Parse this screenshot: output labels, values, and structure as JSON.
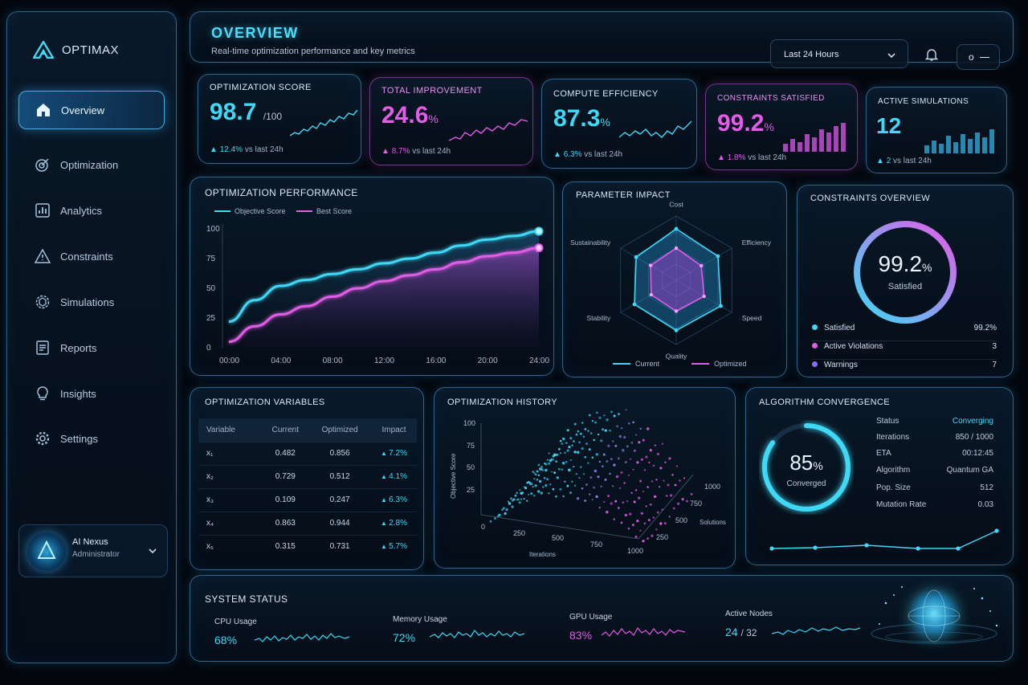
{
  "app": {
    "name": "OPTIMAX"
  },
  "sidebar": {
    "items": [
      {
        "label": "Overview",
        "icon": "home-icon"
      },
      {
        "label": "Optimization",
        "icon": "target-icon"
      },
      {
        "label": "Analytics",
        "icon": "bar-chart-icon"
      },
      {
        "label": "Constraints",
        "icon": "triangle-warning-icon"
      },
      {
        "label": "Simulations",
        "icon": "cube-gear-icon"
      },
      {
        "label": "Reports",
        "icon": "document-icon"
      },
      {
        "label": "Insights",
        "icon": "lightbulb-icon"
      },
      {
        "label": "Settings",
        "icon": "gear-icon"
      }
    ],
    "user": {
      "name": "AI Nexus",
      "role": "Administrator"
    }
  },
  "header": {
    "title": "OVERVIEW",
    "subtitle": "Real-time optimization performance and key metrics",
    "range_selected": "Last 24 Hours",
    "toggle_label": "o"
  },
  "kpis": [
    {
      "title": "OPTIMIZATION SCORE",
      "value": "98.7",
      "unit": "/100",
      "delta": "12.4%",
      "delta_note": "vs last 24h",
      "color": "#3fd8f5"
    },
    {
      "title": "TOTAL IMPROVEMENT",
      "value": "24.6",
      "unit": "%",
      "delta": "8.7%",
      "delta_note": "vs last 24h",
      "color": "#e35ce8"
    },
    {
      "title": "COMPUTE EFFICIENCY",
      "value": "87.3",
      "unit": "%",
      "delta": "6.3%",
      "delta_note": "vs last 24h",
      "color": "#3fd8f5"
    },
    {
      "title": "CONSTRAINTS SATISFIED",
      "value": "99.2",
      "unit": "%",
      "delta": "1.8%",
      "delta_note": "vs last 24h",
      "color": "#e35ce8"
    },
    {
      "title": "ACTIVE SIMULATIONS",
      "value": "12",
      "unit": "",
      "delta": "2",
      "delta_note": "vs last 24h",
      "color": "#3fd8f5"
    }
  ],
  "performance": {
    "title": "OPTIMIZATION PERFORMANCE",
    "legend": [
      "Objective Score",
      "Best Score"
    ],
    "y_ticks": [
      "100",
      "75",
      "50",
      "25",
      "0"
    ],
    "x_ticks": [
      "00:00",
      "04:00",
      "08:00",
      "12:00",
      "16:00",
      "20:00",
      "24:00"
    ]
  },
  "chart_data": {
    "type": "line",
    "x": [
      "00:00",
      "02:00",
      "04:00",
      "06:00",
      "08:00",
      "10:00",
      "12:00",
      "14:00",
      "16:00",
      "18:00",
      "20:00",
      "22:00",
      "24:00"
    ],
    "series": [
      {
        "name": "Objective Score",
        "values": [
          22,
          40,
          52,
          57,
          62,
          66,
          71,
          75,
          80,
          86,
          91,
          94,
          98
        ]
      },
      {
        "name": "Best Score",
        "values": [
          5,
          18,
          28,
          35,
          43,
          50,
          56,
          61,
          66,
          72,
          77,
          80,
          84
        ]
      }
    ],
    "ylim": [
      0,
      100
    ],
    "grid": false,
    "legend_position": "top-left"
  },
  "radar": {
    "title": "PARAMETER IMPACT",
    "axes": [
      "Cost",
      "Efficiency",
      "Speed",
      "Quality",
      "Stability",
      "Sustainability"
    ],
    "legend": [
      "Current",
      "Optimized"
    ],
    "current": [
      0.8,
      0.75,
      0.8,
      0.78,
      0.75,
      0.72
    ],
    "optimized": [
      0.5,
      0.45,
      0.5,
      0.48,
      0.45,
      0.46
    ]
  },
  "constraints": {
    "title": "CONSTRAINTS OVERVIEW",
    "value": "99.2",
    "unit": "%",
    "label": "Satisfied",
    "fraction": 0.992,
    "rows": [
      {
        "label": "Satisfied",
        "value": "99.2%",
        "color": "#3fd8f5"
      },
      {
        "label": "Active Violations",
        "value": "3",
        "color": "#e35ce8"
      },
      {
        "label": "Warnings",
        "value": "7",
        "color": "#8b6cff"
      }
    ]
  },
  "variables": {
    "title": "OPTIMIZATION VARIABLES",
    "headers": [
      "Variable",
      "Current",
      "Optimized",
      "Impact"
    ],
    "rows": [
      {
        "name": "x₁",
        "current": "0.482",
        "optimized": "0.856",
        "impact": "7.2%"
      },
      {
        "name": "x₂",
        "current": "0.729",
        "optimized": "0.512",
        "impact": "4.1%"
      },
      {
        "name": "x₃",
        "current": "0.109",
        "optimized": "0.247",
        "impact": "6.3%"
      },
      {
        "name": "x₄",
        "current": "0.863",
        "optimized": "0.944",
        "impact": "2.8%"
      },
      {
        "name": "x₅",
        "current": "0.315",
        "optimized": "0.731",
        "impact": "5.7%"
      }
    ]
  },
  "history": {
    "title": "OPTIMIZATION HISTORY",
    "y_label": "Objective Score",
    "y_ticks": [
      "100",
      "75",
      "50",
      "25",
      "0"
    ],
    "x_label": "Iterations",
    "x_ticks": [
      "250",
      "500",
      "750",
      "1000"
    ],
    "z_label": "Solutions",
    "z_ticks": [
      "1000",
      "750",
      "500",
      "250"
    ]
  },
  "convergence": {
    "title": "ALGORITHM CONVERGENCE",
    "value": "85",
    "unit": "%",
    "label": "Converged",
    "fraction": 0.85,
    "rows": [
      {
        "label": "Status",
        "value": "Converging"
      },
      {
        "label": "Iterations",
        "value": "850 / 1000"
      },
      {
        "label": "ETA",
        "value": "00:12:45"
      },
      {
        "label": "Algorithm",
        "value": "Quantum GA"
      },
      {
        "label": "Pop. Size",
        "value": "512"
      },
      {
        "label": "Mutation Rate",
        "value": "0.03"
      }
    ]
  },
  "system": {
    "title": "SYSTEM STATUS",
    "items": [
      {
        "label": "CPU Usage",
        "value": "68%",
        "color": "#3fd8f5"
      },
      {
        "label": "Memory Usage",
        "value": "72%",
        "color": "#3fd8f5"
      },
      {
        "label": "GPU Usage",
        "value": "83%",
        "color": "#e35ce8"
      },
      {
        "label": "Active Nodes",
        "value": "24",
        "total": "/ 32",
        "color": "#3fd8f5"
      }
    ]
  },
  "colors": {
    "cyan": "#3fd8f5",
    "magenta": "#e35ce8",
    "violet": "#8b6cff",
    "background": "#03070d"
  }
}
